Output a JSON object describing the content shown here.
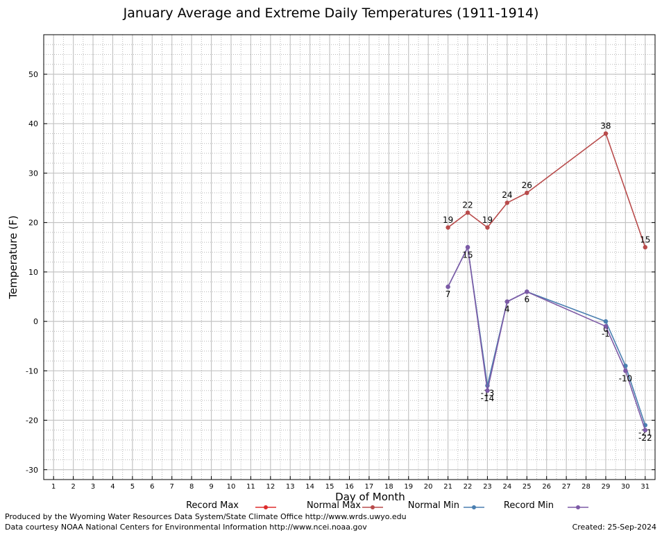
{
  "chart_data": {
    "type": "line",
    "title": "January Average and Extreme Daily Temperatures (1911-1914)",
    "xlabel": "Day of Month",
    "ylabel": "Temperature (F)",
    "xlim": [
      0.5,
      31.5
    ],
    "ylim": [
      -32,
      58
    ],
    "x_ticks": [
      1,
      2,
      3,
      4,
      5,
      6,
      7,
      8,
      9,
      10,
      11,
      12,
      13,
      14,
      15,
      16,
      17,
      18,
      19,
      20,
      21,
      22,
      23,
      24,
      25,
      26,
      27,
      28,
      29,
      30,
      31
    ],
    "y_ticks": [
      -30,
      -20,
      -10,
      0,
      10,
      20,
      30,
      40,
      50
    ],
    "grid": true,
    "series": [
      {
        "name": "Record Max",
        "color": "#dd2b2b",
        "points": []
      },
      {
        "name": "Normal Max",
        "color": "#b84b4b",
        "points": [
          [
            21,
            19
          ],
          [
            22,
            22
          ],
          [
            23,
            19
          ],
          [
            24,
            24
          ],
          [
            25,
            26
          ],
          [
            29,
            38
          ],
          [
            31,
            15
          ]
        ],
        "labels": [
          "19",
          "22",
          "19",
          "24",
          "26",
          "38",
          "15"
        ],
        "label_position": "above"
      },
      {
        "name": "Normal Min",
        "color": "#4a7fb0",
        "points": [
          [
            21,
            7
          ],
          [
            22,
            15
          ],
          [
            23,
            -13
          ],
          [
            24,
            4
          ],
          [
            25,
            6
          ],
          [
            29,
            0
          ],
          [
            30,
            -9
          ],
          [
            31,
            -21
          ]
        ],
        "labels": [
          "",
          "",
          "-13",
          "",
          "",
          "0",
          "",
          "-21"
        ],
        "label_position": "below"
      },
      {
        "name": "Record Min",
        "color": "#7d5aa6",
        "points": [
          [
            21,
            7
          ],
          [
            22,
            15
          ],
          [
            23,
            -14
          ],
          [
            24,
            4
          ],
          [
            25,
            6
          ],
          [
            29,
            -1
          ],
          [
            30,
            -10
          ],
          [
            31,
            -22
          ]
        ],
        "labels": [
          "7",
          "15",
          "-14",
          "4",
          "6",
          "-1",
          "-10",
          "-22"
        ],
        "label_position": "below"
      }
    ]
  },
  "footer": {
    "produced_by": "Produced by the Wyoming Water Resources Data System/State Climate Office http://www.wrds.uwyo.edu",
    "courtesy": "Data courtesy NOAA National Centers for Environmental Information http://www.ncei.noaa.gov",
    "created": "Created:  25-Sep-2024"
  }
}
